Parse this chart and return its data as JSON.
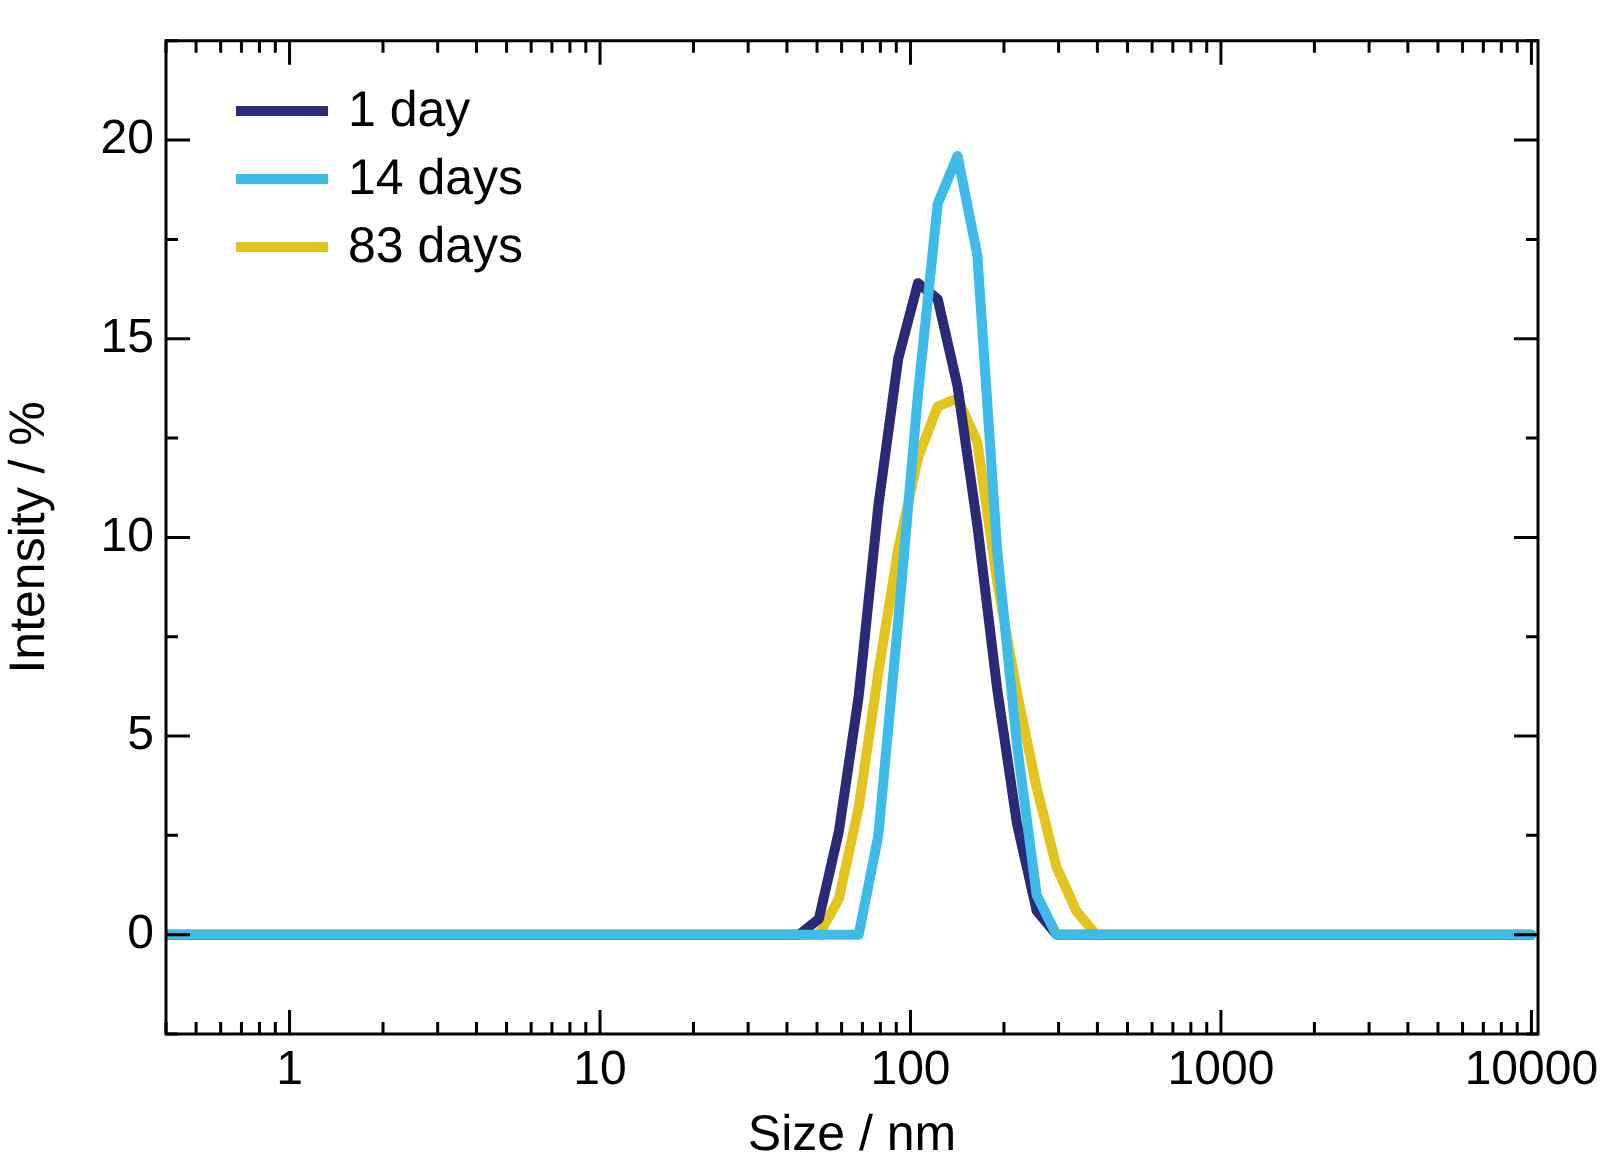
{
  "chart_data": {
    "type": "line",
    "xlabel": "Size / nm",
    "ylabel": "Intensity / %",
    "log": "x",
    "xlim": [
      0.4,
      10500
    ],
    "ylim": [
      -2.5,
      22.5
    ],
    "xticks": [
      {
        "value": 0.4,
        "label": null
      },
      {
        "value": 0.5,
        "label": null
      },
      {
        "value": 0.6,
        "label": null
      },
      {
        "value": 0.7,
        "label": null
      },
      {
        "value": 0.8,
        "label": null
      },
      {
        "value": 0.9,
        "label": null
      },
      1,
      {
        "value": 2,
        "label": null
      },
      {
        "value": 3,
        "label": null
      },
      {
        "value": 4,
        "label": null
      },
      {
        "value": 5,
        "label": null
      },
      {
        "value": 6,
        "label": null
      },
      {
        "value": 7,
        "label": null
      },
      {
        "value": 8,
        "label": null
      },
      {
        "value": 9,
        "label": null
      },
      10,
      {
        "value": 20,
        "label": null
      },
      {
        "value": 30,
        "label": null
      },
      {
        "value": 40,
        "label": null
      },
      {
        "value": 50,
        "label": null
      },
      {
        "value": 60,
        "label": null
      },
      {
        "value": 70,
        "label": null
      },
      {
        "value": 80,
        "label": null
      },
      {
        "value": 90,
        "label": null
      },
      100,
      {
        "value": 200,
        "label": null
      },
      {
        "value": 300,
        "label": null
      },
      {
        "value": 400,
        "label": null
      },
      {
        "value": 500,
        "label": null
      },
      {
        "value": 600,
        "label": null
      },
      {
        "value": 700,
        "label": null
      },
      {
        "value": 800,
        "label": null
      },
      {
        "value": 900,
        "label": null
      },
      1000,
      {
        "value": 2000,
        "label": null
      },
      {
        "value": 3000,
        "label": null
      },
      {
        "value": 4000,
        "label": null
      },
      {
        "value": 5000,
        "label": null
      },
      {
        "value": 6000,
        "label": null
      },
      {
        "value": 7000,
        "label": null
      },
      {
        "value": 8000,
        "label": null
      },
      {
        "value": 9000,
        "label": null
      },
      10000
    ],
    "yticks": [
      {
        "value": -2.5,
        "label": null
      },
      0,
      {
        "value": 2.5,
        "label": null
      },
      5,
      {
        "value": 7.5,
        "label": null
      },
      10,
      {
        "value": 12.5,
        "label": null
      },
      15,
      {
        "value": 17.5,
        "label": null
      },
      20,
      {
        "value": 22.5,
        "label": null
      }
    ],
    "grid": false,
    "legend": "top left",
    "marker": "none",
    "line_style": "solid",
    "series": [
      {
        "name": "1 day",
        "color": "#2b2a77",
        "x": [
          0.4,
          43.8,
          50.7,
          58.8,
          68.1,
          78.8,
          91.3,
          105.7,
          122.4,
          141.8,
          164.2,
          190.1,
          220.2,
          255.0,
          295.3,
          10000
        ],
        "values": [
          0,
          0,
          0.4,
          2.6,
          6.0,
          10.8,
          14.5,
          16.4,
          16.0,
          13.8,
          10.3,
          6.2,
          2.8,
          0.6,
          0,
          0
        ]
      },
      {
        "name": "14 days",
        "color": "#3fbbea",
        "x": [
          0.4,
          68.1,
          78.8,
          91.3,
          105.7,
          122.4,
          141.8,
          164.2,
          190.1,
          220.2,
          255.0,
          295.3,
          10000
        ],
        "values": [
          0,
          0,
          2.5,
          7.9,
          13.6,
          18.4,
          19.6,
          17.1,
          9.7,
          4.8,
          1.0,
          0,
          0
        ]
      },
      {
        "name": "83 days",
        "color": "#e3c31d",
        "x": [
          0.4,
          50.7,
          58.8,
          68.1,
          78.8,
          91.3,
          105.7,
          122.4,
          141.8,
          164.2,
          190.1,
          220.2,
          255.0,
          295.3,
          342.0,
          396.1,
          10000
        ],
        "values": [
          0,
          0,
          0.9,
          3.2,
          6.6,
          9.7,
          12.0,
          13.3,
          13.5,
          12.4,
          8.9,
          6.1,
          3.7,
          1.7,
          0.6,
          0,
          0
        ]
      }
    ]
  }
}
